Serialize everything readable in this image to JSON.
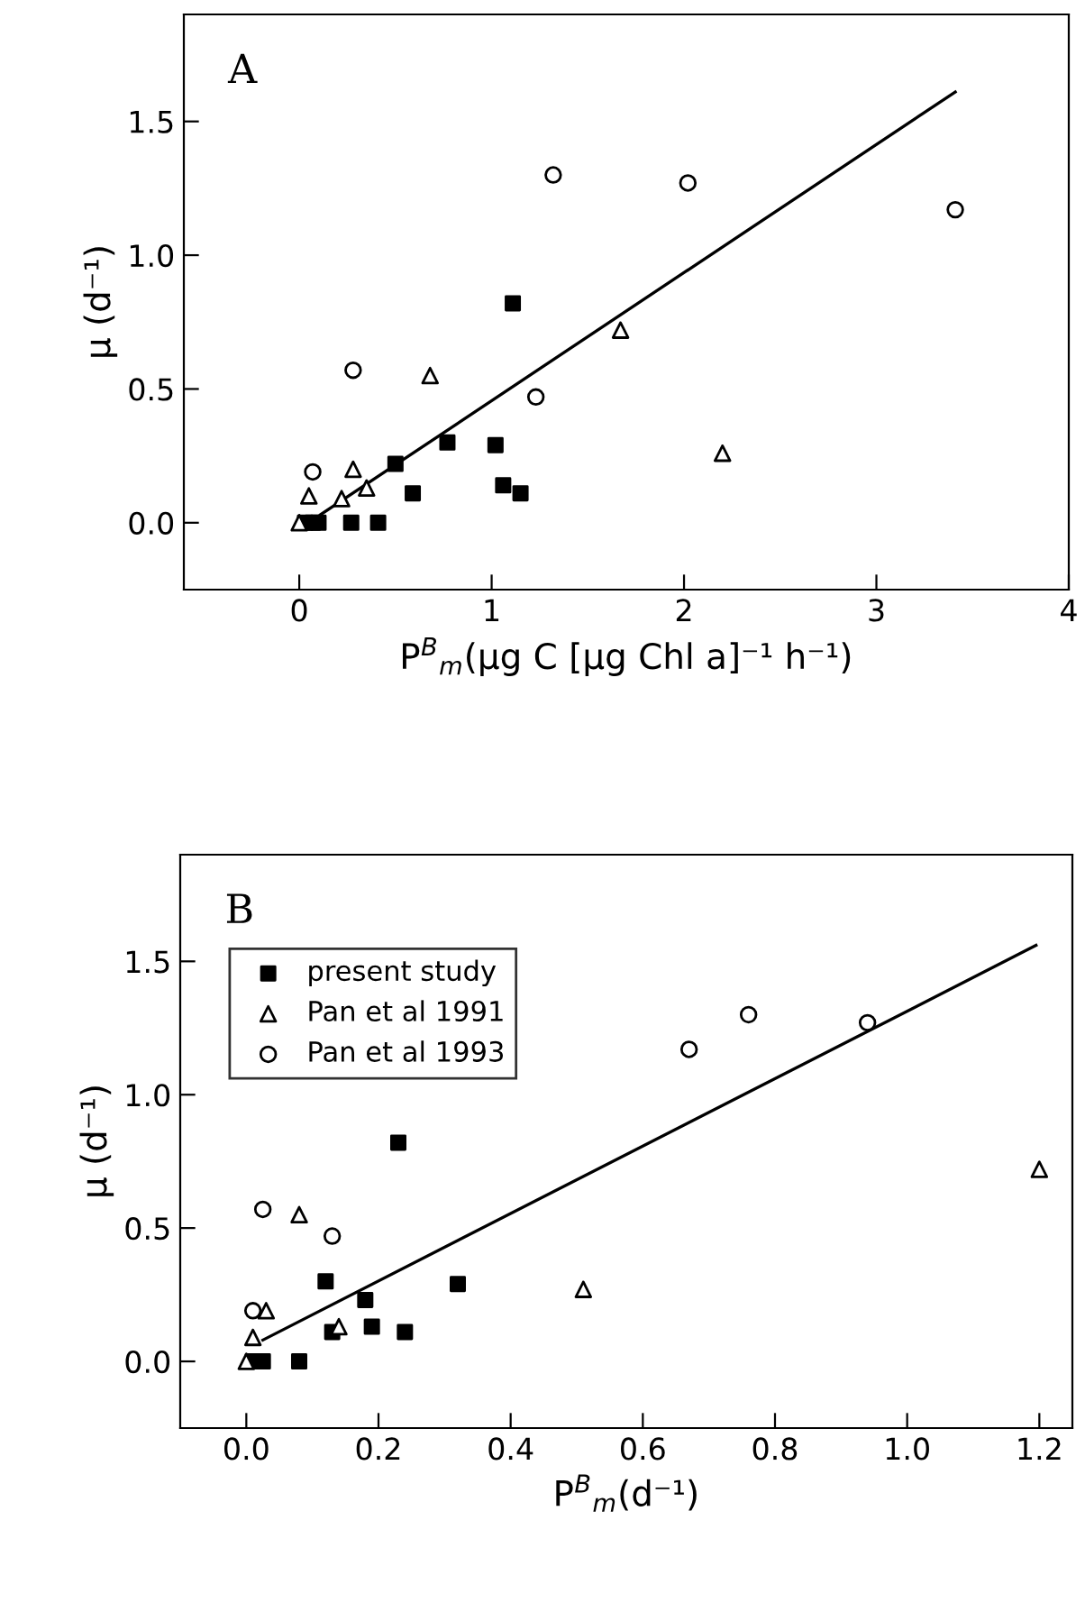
{
  "chart_data": [
    {
      "type": "scatter",
      "xlabel": "P$^{B}$$_{m}$(μg C [μg Chl a]⁻¹ h⁻¹)",
      "ylabel": "μ (d⁻¹)",
      "annotations": [
        "A"
      ],
      "xlim": [
        -0.6,
        4.0
      ],
      "xticks": [
        0,
        1,
        2,
        3,
        4
      ],
      "ylim": [
        -0.25,
        1.9
      ],
      "yticks": [
        {
          "value": 0,
          "label": "0.0"
        },
        {
          "value": 0.5,
          "label": "0.5"
        },
        {
          "value": 1.0,
          "label": "1.0"
        },
        {
          "value": 1.5,
          "label": "1.5"
        }
      ],
      "grid": false,
      "legend": false,
      "series": [
        {
          "color": "#000000",
          "marker": "square",
          "x": [
            1.11,
            0.77,
            1.02,
            0.5,
            0.59,
            1.06,
            1.15,
            0.27,
            0.41,
            0.1,
            0.03,
            0.07
          ],
          "values": [
            0.82,
            0.3,
            0.29,
            0.22,
            0.11,
            0.14,
            0.11,
            0.0,
            0.0,
            0.0,
            0.0,
            0.0
          ]
        },
        {
          "color": "#000000",
          "marker": "triangle",
          "x": [
            1.67,
            0.68,
            2.2,
            0.28,
            0.05,
            0.22,
            0.35,
            0.0
          ],
          "values": [
            0.72,
            0.55,
            0.26,
            0.2,
            0.1,
            0.09,
            0.13,
            0.0
          ]
        },
        {
          "color": "#000000",
          "marker": "circle",
          "x": [
            1.32,
            2.02,
            3.41,
            0.28,
            1.23,
            0.07
          ],
          "values": [
            1.3,
            1.27,
            1.17,
            0.57,
            0.47,
            0.19
          ]
        },
        {
          "type": "line",
          "color": "#000000",
          "marker": "none",
          "x": [
            0.11,
            3.41
          ],
          "values": [
            0.03,
            1.61
          ]
        }
      ]
    },
    {
      "type": "scatter",
      "xlabel": "P$^{B}$$_{m}$(d⁻¹)",
      "ylabel": "μ (d⁻¹)",
      "annotations": [
        "B"
      ],
      "xlim": [
        -0.1,
        1.25
      ],
      "xticks": [
        {
          "value": 0,
          "label": "0.0"
        },
        0.2,
        0.4,
        0.6,
        0.8,
        {
          "value": 1.0,
          "label": "1.0"
        },
        1.2
      ],
      "ylim": [
        -0.25,
        1.9
      ],
      "yticks": [
        {
          "value": 0,
          "label": "0.0"
        },
        0.5,
        {
          "value": 1.0,
          "label": "1.0"
        },
        1.5
      ],
      "grid": false,
      "legend": "top left",
      "series": [
        {
          "name": "present study",
          "color": "#000000",
          "marker": "square",
          "x": [
            0.23,
            0.12,
            0.32,
            0.18,
            0.13,
            0.19,
            0.24,
            0.08,
            0.025,
            0.01
          ],
          "values": [
            0.82,
            0.3,
            0.29,
            0.23,
            0.11,
            0.13,
            0.11,
            0.0,
            0.0,
            0.0
          ]
        },
        {
          "name": "Pan et al 1991",
          "color": "#000000",
          "marker": "triangle",
          "x": [
            1.2,
            0.08,
            0.51,
            0.03,
            0.01,
            0.14,
            0.0
          ],
          "values": [
            0.72,
            0.55,
            0.27,
            0.19,
            0.09,
            0.13,
            0.0
          ]
        },
        {
          "name": "Pan et al 1993",
          "color": "#000000",
          "marker": "circle",
          "x": [
            0.76,
            0.94,
            0.67,
            0.025,
            0.13,
            0.01
          ],
          "values": [
            1.3,
            1.27,
            1.17,
            0.57,
            0.47,
            0.19
          ]
        },
        {
          "type": "line",
          "color": "#000000",
          "marker": "none",
          "x": [
            0.025,
            1.195
          ],
          "values": [
            0.08,
            1.56
          ]
        }
      ]
    }
  ]
}
